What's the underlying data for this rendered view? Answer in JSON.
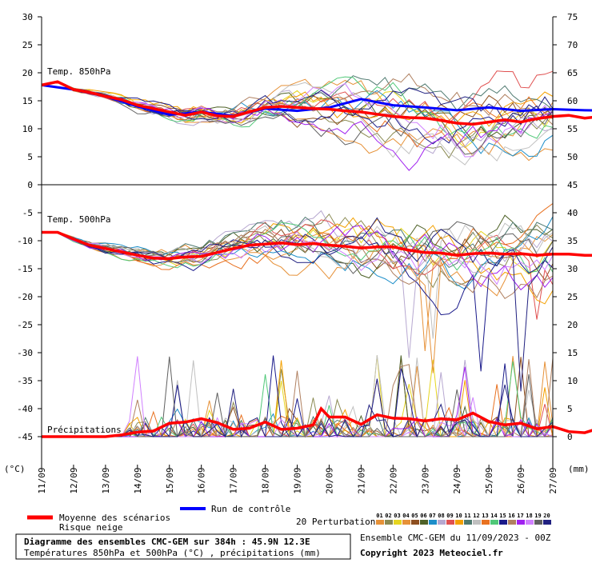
{
  "chart_data": {
    "type": "line",
    "title": "Diagramme des ensembles CMC-GEM sur 384h : 45.9N 12.3E",
    "subtitle": "Températures 850hPa et 500hPa (°C) , précipitations (mm)",
    "left_unit": "(°C)",
    "right_unit": "(mm)",
    "x_labels": [
      "11/09",
      "12/09",
      "13/09",
      "14/09",
      "15/09",
      "16/09",
      "17/09",
      "18/09",
      "19/09",
      "20/09",
      "21/09",
      "22/09",
      "23/09",
      "24/09",
      "25/09",
      "26/09",
      "27/09"
    ],
    "x_steps_per_day": 4,
    "left_axis": {
      "min": -50,
      "max": 30,
      "ticks": [
        "30",
        "25",
        "20",
        "15",
        "10",
        "5",
        "0",
        "-5",
        "-10",
        "-15",
        "-20",
        "-25",
        "-30",
        "-35",
        "-40",
        "-45"
      ]
    },
    "right_axis_labels": [
      {
        "label": "75",
        "at": 30
      },
      {
        "label": "70",
        "at": 25
      },
      {
        "label": "65",
        "at": 20
      },
      {
        "label": "60",
        "at": 15
      },
      {
        "label": "55",
        "at": 10
      },
      {
        "label": "50",
        "at": 5
      },
      {
        "label": "45",
        "at": 0
      },
      {
        "label": "40",
        "at": -5
      },
      {
        "label": "35",
        "at": -10
      },
      {
        "label": "30",
        "at": -15
      },
      {
        "label": "25",
        "at": -20
      },
      {
        "label": "20",
        "at": -25
      },
      {
        "label": "15",
        "at": -30
      },
      {
        "label": "10",
        "at": -35
      },
      {
        "label": "5",
        "at": -40
      },
      {
        "label": "0",
        "at": -45
      }
    ],
    "panels": {
      "t850": "Temp. 850hPa",
      "t500": "Temp. 500hPa",
      "precip": "Précipitations"
    },
    "mean_series": {
      "t850": [
        [
          0,
          17.8
        ],
        [
          2,
          18.4
        ],
        [
          4,
          17
        ],
        [
          6,
          16.5
        ],
        [
          8,
          15.8
        ],
        [
          10,
          15.2
        ],
        [
          12,
          14.2
        ],
        [
          14,
          13.6
        ],
        [
          16,
          13
        ],
        [
          18,
          12.4
        ],
        [
          20,
          13
        ],
        [
          22,
          12.3
        ],
        [
          24,
          12.2
        ],
        [
          26,
          13
        ],
        [
          28,
          13.8
        ],
        [
          30,
          14
        ],
        [
          32,
          13.8
        ],
        [
          34,
          13.6
        ],
        [
          36,
          13.5
        ],
        [
          38,
          13.2
        ],
        [
          40,
          13
        ],
        [
          42,
          12.6
        ],
        [
          44,
          12.2
        ],
        [
          46,
          12
        ],
        [
          48,
          11.9
        ],
        [
          50,
          11.5
        ],
        [
          52,
          11
        ],
        [
          54,
          10.8
        ],
        [
          56,
          11.2
        ],
        [
          58,
          11.6
        ],
        [
          60,
          11.2
        ],
        [
          62,
          11.8
        ],
        [
          64,
          12.2
        ],
        [
          66,
          12.4
        ],
        [
          68,
          11.9
        ],
        [
          70,
          12.2
        ],
        [
          72,
          12.4
        ],
        [
          74,
          12.2
        ],
        [
          76,
          11.9
        ],
        [
          78,
          12
        ]
      ],
      "t500": [
        [
          0,
          -8.5
        ],
        [
          2,
          -8.5
        ],
        [
          4,
          -9.7
        ],
        [
          6,
          -10.8
        ],
        [
          8,
          -11.4
        ],
        [
          10,
          -12
        ],
        [
          12,
          -12.6
        ],
        [
          14,
          -13.1
        ],
        [
          16,
          -13.2
        ],
        [
          18,
          -12.9
        ],
        [
          20,
          -12.8
        ],
        [
          22,
          -12.1
        ],
        [
          24,
          -11.4
        ],
        [
          26,
          -10.8
        ],
        [
          28,
          -10.6
        ],
        [
          30,
          -10.4
        ],
        [
          32,
          -10.7
        ],
        [
          34,
          -10.5
        ],
        [
          36,
          -10.8
        ],
        [
          38,
          -11
        ],
        [
          40,
          -11.3
        ],
        [
          42,
          -11.1
        ],
        [
          44,
          -11.1
        ],
        [
          46,
          -11.7
        ],
        [
          48,
          -12.1
        ],
        [
          50,
          -12.2
        ],
        [
          52,
          -12.6
        ],
        [
          54,
          -12.3
        ],
        [
          56,
          -12.2
        ],
        [
          58,
          -12.4
        ],
        [
          60,
          -12.3
        ],
        [
          62,
          -12.6
        ],
        [
          64,
          -12.4
        ],
        [
          66,
          -12.4
        ],
        [
          68,
          -12.6
        ],
        [
          70,
          -12.6
        ],
        [
          72,
          -12.4
        ],
        [
          74,
          -11.5
        ],
        [
          76,
          -12
        ],
        [
          78,
          -13
        ]
      ],
      "precip_mm": [
        [
          0,
          0
        ],
        [
          8,
          0
        ],
        [
          10,
          0.3
        ],
        [
          12,
          0.8
        ],
        [
          14,
          1
        ],
        [
          16,
          2.4
        ],
        [
          18,
          2.6
        ],
        [
          20,
          3.2
        ],
        [
          22,
          2.5
        ],
        [
          24,
          1.3
        ],
        [
          26,
          1.5
        ],
        [
          28,
          2.6
        ],
        [
          30,
          1.3
        ],
        [
          32,
          1.5
        ],
        [
          34,
          2.1
        ],
        [
          35,
          5
        ],
        [
          36,
          3.5
        ],
        [
          38,
          3.5
        ],
        [
          40,
          2.2
        ],
        [
          42,
          3.9
        ],
        [
          44,
          3.3
        ],
        [
          46,
          3.2
        ],
        [
          48,
          2.8
        ],
        [
          50,
          3.2
        ],
        [
          52,
          3
        ],
        [
          54,
          4.2
        ],
        [
          56,
          2.7
        ],
        [
          58,
          2.1
        ],
        [
          60,
          2.4
        ],
        [
          62,
          1.4
        ],
        [
          64,
          1.8
        ],
        [
          66,
          0.9
        ],
        [
          68,
          0.7
        ],
        [
          70,
          1.6
        ],
        [
          72,
          1.5
        ],
        [
          74,
          0.8
        ],
        [
          75,
          1.2
        ],
        [
          76,
          2.1
        ],
        [
          78,
          1.6
        ]
      ]
    },
    "control_series": {
      "t850": [
        [
          0,
          17.8
        ],
        [
          4,
          17
        ],
        [
          8,
          15.8
        ],
        [
          12,
          14
        ],
        [
          16,
          12.5
        ],
        [
          20,
          13
        ],
        [
          24,
          12.3
        ],
        [
          28,
          13.6
        ],
        [
          32,
          13.2
        ],
        [
          36,
          13.8
        ],
        [
          40,
          15.3
        ],
        [
          44,
          14.2
        ],
        [
          48,
          13.8
        ],
        [
          52,
          13.3
        ],
        [
          56,
          13.8
        ],
        [
          60,
          13.2
        ],
        [
          64,
          13.5
        ],
        [
          68,
          13.3
        ],
        [
          72,
          13.2
        ],
        [
          75,
          13.5
        ],
        [
          76,
          11
        ],
        [
          78,
          9.8
        ]
      ]
    },
    "perturbation_colors": [
      "#e69138",
      "#8a8a52",
      "#e6d51f",
      "#e69138",
      "#8e4f20",
      "#4f6228",
      "#1c8ec9",
      "#b7a8d0",
      "#e05050",
      "#f4a100",
      "#4f7a70",
      "#c0c0c0",
      "#e87120",
      "#50c878",
      "#1a1a8a",
      "#b08060",
      "#a020f0",
      "#d080ff",
      "#606060",
      "#202080"
    ],
    "legend": {
      "mean": "Moyenne des scénarios",
      "snow": "Risque neige",
      "control": "Run de contrôle",
      "perturbations": "20 Perturbations",
      "perturbation_ids": [
        "01",
        "02",
        "03",
        "04",
        "05",
        "06",
        "07",
        "08",
        "09",
        "10",
        "11",
        "12",
        "13",
        "14",
        "15",
        "16",
        "17",
        "18",
        "19",
        "20"
      ]
    },
    "footer": {
      "ensemble": "Ensemble CMC-GEM du 11/09/2023 - 00Z",
      "copyright": "Copyright 2023 Meteociel.fr"
    },
    "colors": {
      "mean": "#ff0000",
      "control": "#0000ff"
    }
  }
}
